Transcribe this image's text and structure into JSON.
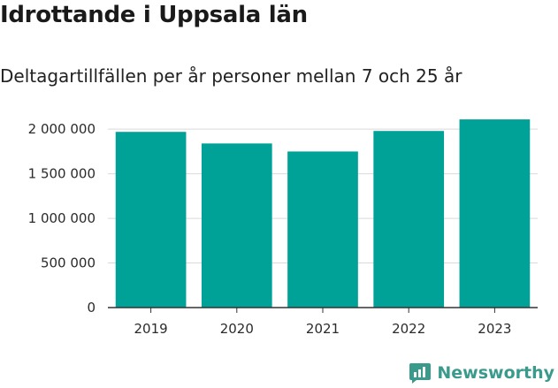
{
  "title": "Idrottande i Uppsala län",
  "subtitle": "Deltagartillfällen per år personer mellan 7 och 25 år",
  "colors": {
    "bar": "#00a298",
    "brand": "#3a9a8c",
    "grid": "#d9d9d9",
    "axis": "#333333"
  },
  "chart_data": {
    "type": "bar",
    "categories": [
      "2019",
      "2020",
      "2021",
      "2022",
      "2023"
    ],
    "values": [
      1970000,
      1840000,
      1750000,
      1980000,
      2110000
    ],
    "ylim": [
      0,
      2200000
    ],
    "yticks": [
      0,
      500000,
      1000000,
      1500000,
      2000000
    ],
    "ytick_labels": [
      "0",
      "500 000",
      "1 000 000",
      "1 500 000",
      "2 000 000"
    ],
    "xlabel": "",
    "ylabel": "",
    "grid": true
  },
  "brand": {
    "name": "Newsworthy",
    "icon": "newsworthy-logo-icon"
  }
}
